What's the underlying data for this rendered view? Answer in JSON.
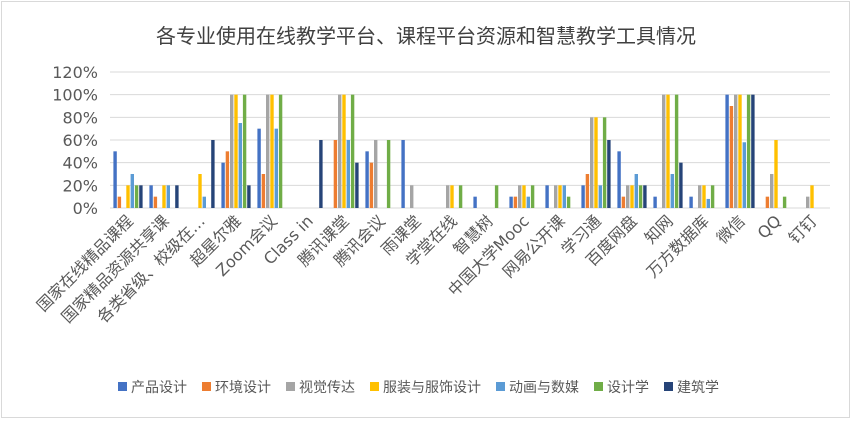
{
  "chart_data": {
    "type": "bar",
    "title": "各专业使用在线教学平台、课程平台资源和智慧教学工具情况",
    "xlabel": "",
    "ylabel": "",
    "ylim": [
      0,
      120
    ],
    "yticks": [
      "0%",
      "20%",
      "40%",
      "60%",
      "80%",
      "100%",
      "120%"
    ],
    "grid": true,
    "legend_position": "bottom",
    "categories": [
      "国家在线精品课程",
      "国家精品资源共享课",
      "各类省级、校级在…",
      "超星尔雅",
      "Zoom会议",
      "Class in",
      "腾讯课堂",
      "腾讯会议",
      "雨课堂",
      "学堂在线",
      "智慧树",
      "中国大学Mooc",
      "网易公开课",
      "学习通",
      "百度网盘",
      "知网",
      "万方数据库",
      "微信",
      "QQ",
      "钉钉"
    ],
    "series": [
      {
        "name": "产品设计",
        "color": "#4472c4",
        "values": [
          50,
          20,
          0,
          40,
          70,
          0,
          0,
          50,
          60,
          0,
          10,
          10,
          20,
          20,
          50,
          10,
          10,
          100,
          0,
          0
        ]
      },
      {
        "name": "环境设计",
        "color": "#ed7d31",
        "values": [
          10,
          10,
          0,
          50,
          30,
          0,
          60,
          40,
          0,
          0,
          0,
          10,
          0,
          30,
          10,
          0,
          0,
          90,
          10,
          0
        ]
      },
      {
        "name": "视觉传达",
        "color": "#a5a5a5",
        "values": [
          0,
          0,
          0,
          100,
          100,
          0,
          100,
          60,
          20,
          20,
          0,
          20,
          20,
          80,
          20,
          100,
          20,
          100,
          30,
          10
        ]
      },
      {
        "name": "服装与服饰设计",
        "color": "#ffc000",
        "values": [
          20,
          20,
          30,
          100,
          100,
          0,
          100,
          0,
          0,
          20,
          0,
          20,
          20,
          80,
          20,
          100,
          20,
          100,
          60,
          20
        ]
      },
      {
        "name": "动画与数媒",
        "color": "#5b9bd5",
        "values": [
          30,
          20,
          10,
          75,
          70,
          0,
          60,
          0,
          0,
          0,
          0,
          10,
          20,
          20,
          30,
          30,
          8,
          58,
          0,
          0
        ]
      },
      {
        "name": "设计学",
        "color": "#70ad47",
        "values": [
          20,
          0,
          0,
          100,
          100,
          0,
          100,
          60,
          0,
          20,
          20,
          20,
          10,
          80,
          20,
          100,
          20,
          100,
          10,
          0
        ]
      },
      {
        "name": "建筑学",
        "color": "#264478",
        "values": [
          20,
          20,
          60,
          20,
          0,
          60,
          40,
          0,
          0,
          0,
          0,
          0,
          0,
          60,
          20,
          40,
          0,
          100,
          0,
          0
        ]
      }
    ]
  }
}
